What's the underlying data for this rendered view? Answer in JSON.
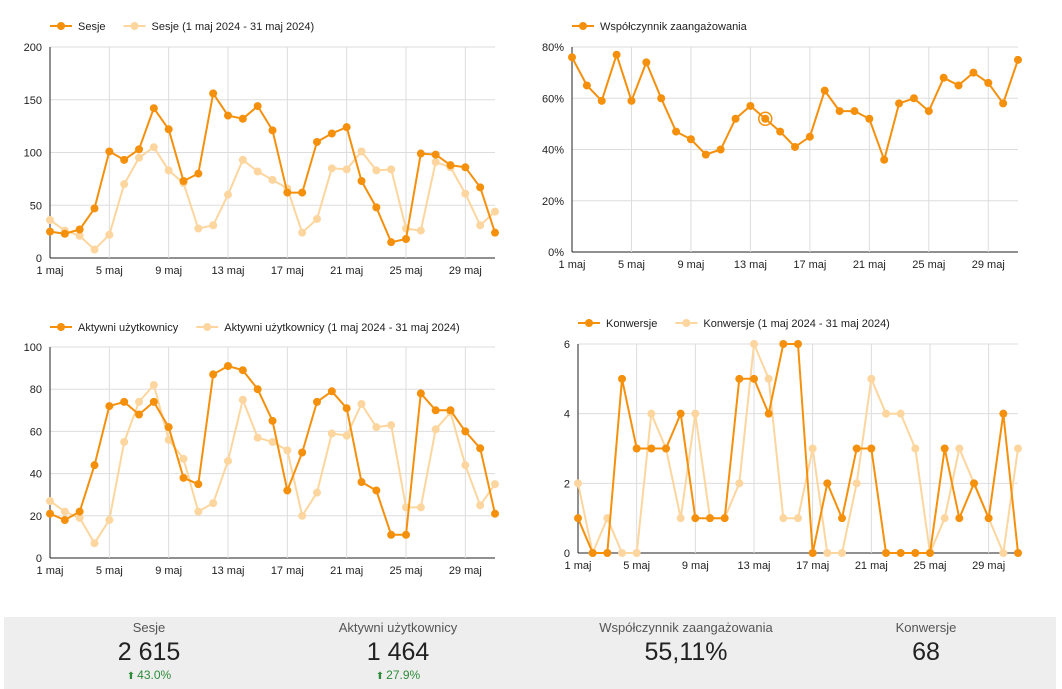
{
  "colors": {
    "primary": "#f5900c",
    "comparison": "#fcd69e",
    "grid": "#dddddd",
    "axis": "#222222",
    "positive": "#2e8b3a",
    "kpi_bg": "#eeeeee"
  },
  "chart_data": [
    {
      "type": "line",
      "x_ticks": [
        "1 maj",
        "5 maj",
        "9 maj",
        "13 maj",
        "17 maj",
        "21 maj",
        "25 maj",
        "29 maj"
      ],
      "y_ticks": [
        "0",
        "50",
        "100",
        "150",
        "200"
      ],
      "ylim": [
        0,
        200
      ],
      "days": 31,
      "series": [
        {
          "name": "Sesje",
          "role": "primary",
          "values": [
            25,
            23,
            27,
            47,
            101,
            93,
            103,
            142,
            122,
            73,
            80,
            156,
            135,
            132,
            144,
            121,
            62,
            62,
            110,
            118,
            124,
            73,
            48,
            15,
            18,
            99,
            98,
            88,
            86,
            67,
            24
          ]
        },
        {
          "name": "Sesje (1 maj 2024 - 31 maj 2024)",
          "role": "comparison",
          "values": [
            36,
            26,
            21,
            8,
            22,
            70,
            95,
            105,
            83,
            71,
            28,
            31,
            60,
            93,
            82,
            74,
            66,
            24,
            37,
            85,
            84,
            101,
            83,
            84,
            28,
            26,
            91,
            86,
            61,
            31,
            44
          ]
        }
      ]
    },
    {
      "type": "line",
      "x_ticks": [
        "1 maj",
        "5 maj",
        "9 maj",
        "13 maj",
        "17 maj",
        "21 maj",
        "25 maj",
        "29 maj"
      ],
      "y_ticks": [
        "0%",
        "20%",
        "40%",
        "60%",
        "80%"
      ],
      "ylim": [
        0,
        80
      ],
      "days": 31,
      "highlight_index": 13,
      "series": [
        {
          "name": "Współczynnik zaangażowania",
          "role": "primary",
          "values": [
            76,
            65,
            59,
            77,
            59,
            74,
            60,
            47,
            44,
            38,
            40,
            52,
            57,
            52,
            47,
            41,
            45,
            63,
            55,
            55,
            52,
            36,
            58,
            60,
            55,
            68,
            65,
            70,
            66,
            58,
            75
          ]
        }
      ]
    },
    {
      "type": "line",
      "x_ticks": [
        "1 maj",
        "5 maj",
        "9 maj",
        "13 maj",
        "17 maj",
        "21 maj",
        "25 maj",
        "29 maj"
      ],
      "y_ticks": [
        "0",
        "20",
        "40",
        "60",
        "80",
        "100"
      ],
      "ylim": [
        0,
        100
      ],
      "days": 31,
      "series": [
        {
          "name": "Aktywni użytkownicy",
          "role": "primary",
          "values": [
            21,
            18,
            22,
            44,
            72,
            74,
            68,
            74,
            62,
            38,
            35,
            87,
            91,
            89,
            80,
            65,
            32,
            50,
            74,
            79,
            71,
            36,
            32,
            11,
            11,
            78,
            70,
            70,
            60,
            52,
            21
          ]
        },
        {
          "name": "Aktywni użytkownicy (1 maj 2024 - 31 maj 2024)",
          "role": "comparison",
          "values": [
            27,
            22,
            19,
            7,
            18,
            55,
            74,
            82,
            56,
            47,
            22,
            26,
            46,
            75,
            57,
            55,
            51,
            20,
            31,
            59,
            58,
            73,
            62,
            63,
            24,
            24,
            61,
            69,
            44,
            25,
            35
          ]
        }
      ]
    },
    {
      "type": "line",
      "x_ticks": [
        "1 maj",
        "5 maj",
        "9 maj",
        "13 maj",
        "17 maj",
        "21 maj",
        "25 maj",
        "29 maj"
      ],
      "y_ticks": [
        "0",
        "2",
        "4",
        "6"
      ],
      "ylim": [
        0,
        6
      ],
      "days": 31,
      "series": [
        {
          "name": "Konwersje",
          "role": "primary",
          "values": [
            1,
            0,
            0,
            5,
            3,
            3,
            3,
            4,
            1,
            1,
            1,
            5,
            5,
            4,
            6,
            6,
            0,
            2,
            1,
            3,
            3,
            0,
            0,
            0,
            0,
            3,
            1,
            2,
            1,
            4,
            0
          ]
        },
        {
          "name": "Konwersje (1 maj 2024 - 31 maj 2024)",
          "role": "comparison",
          "values": [
            2,
            0,
            1,
            0,
            0,
            4,
            3,
            1,
            4,
            1,
            1,
            2,
            6,
            5,
            1,
            1,
            3,
            0,
            0,
            2,
            5,
            4,
            4,
            3,
            0,
            1,
            3,
            2,
            1,
            0,
            3
          ]
        }
      ]
    }
  ],
  "scorecards": [
    {
      "label": "Sesje",
      "value": "2 615",
      "delta": "43.0%"
    },
    {
      "label": "Aktywni użytkownicy",
      "value": "1 464",
      "delta": "27.9%"
    },
    {
      "label": "Współczynnik zaangażowania",
      "value": "55,11%",
      "delta": ""
    },
    {
      "label": "Konwersje",
      "value": "68",
      "delta": ""
    }
  ]
}
